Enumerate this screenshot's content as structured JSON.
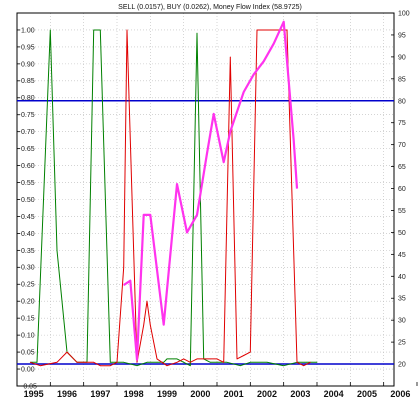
{
  "chart_data": {
    "type": "line",
    "title": "SELL (0.0157), BUY (0.0262), Money Flow Index (58.9725)",
    "x_ticks": [
      "1995",
      "1996",
      "1997",
      "1998",
      "1999",
      "2000",
      "2001",
      "2002",
      "2003",
      "2004",
      "2005",
      "2006",
      "200"
    ],
    "left_axis": {
      "ylim": [
        -0.05,
        1.05
      ],
      "ticks": [
        "1.00",
        "0.95",
        "0.90",
        "0.85",
        "0.80",
        "0.75",
        "0.70",
        "0.65",
        "0.60",
        "0.55",
        "0.50",
        "0.45",
        "0.40",
        "0.35",
        "0.30",
        "0.25",
        "0.20",
        "0.15",
        "0.10",
        "0.05",
        "0.00",
        "-0.05"
      ]
    },
    "right_axis": {
      "ylim": [
        15,
        100
      ],
      "ticks": [
        "100",
        "95",
        "90",
        "85",
        "80",
        "75",
        "70",
        "65",
        "60",
        "55",
        "50",
        "45",
        "40",
        "35",
        "30",
        "25",
        "20"
      ]
    },
    "reference_lines": [
      80,
      20
    ],
    "series": [
      {
        "color": "#008000",
        "axis": "left",
        "points": [
          [
            1995.4,
            0.02
          ],
          [
            1995.6,
            0.02
          ],
          [
            1996.0,
            1.0
          ],
          [
            1996.2,
            0.35
          ],
          [
            1996.5,
            0.05
          ],
          [
            1996.8,
            0.02
          ],
          [
            1997.1,
            0.02
          ],
          [
            1997.3,
            1.0
          ],
          [
            1997.5,
            1.0
          ],
          [
            1997.8,
            0.02
          ],
          [
            1998.2,
            0.02
          ],
          [
            1998.6,
            0.01
          ],
          [
            1998.9,
            0.02
          ],
          [
            1999.2,
            0.02
          ],
          [
            1999.4,
            0.02
          ],
          [
            1999.5,
            0.03
          ],
          [
            1999.7,
            0.03
          ],
          [
            1999.8,
            0.03
          ],
          [
            2000.0,
            0.02
          ],
          [
            2000.2,
            0.01
          ],
          [
            2000.4,
            0.99
          ],
          [
            2000.6,
            0.03
          ],
          [
            2000.8,
            0.02
          ],
          [
            2001.0,
            0.02
          ],
          [
            2001.3,
            0.02
          ],
          [
            2001.7,
            0.01
          ],
          [
            2002.0,
            0.02
          ],
          [
            2002.5,
            0.02
          ],
          [
            2003.0,
            0.01
          ],
          [
            2003.4,
            0.02
          ],
          [
            2003.7,
            0.02
          ],
          [
            2004.0,
            0.02
          ]
        ]
      },
      {
        "color": "#e00000",
        "axis": "left",
        "points": [
          [
            1995.4,
            0.02
          ],
          [
            1995.7,
            0.01
          ],
          [
            1996.2,
            0.02
          ],
          [
            1996.5,
            0.05
          ],
          [
            1996.8,
            0.02
          ],
          [
            1997.0,
            0.02
          ],
          [
            1997.3,
            0.02
          ],
          [
            1997.5,
            0.01
          ],
          [
            1997.8,
            0.01
          ],
          [
            1998.0,
            0.02
          ],
          [
            1998.2,
            0.3
          ],
          [
            1998.3,
            1.0
          ],
          [
            1998.6,
            0.02
          ],
          [
            1998.8,
            0.13
          ],
          [
            1998.9,
            0.2
          ],
          [
            1999.0,
            0.13
          ],
          [
            1999.2,
            0.03
          ],
          [
            1999.5,
            0.01
          ],
          [
            1999.8,
            0.02
          ],
          [
            2000.0,
            0.03
          ],
          [
            2000.2,
            0.02
          ],
          [
            2000.4,
            0.03
          ],
          [
            2000.6,
            0.03
          ],
          [
            2000.8,
            0.03
          ],
          [
            2001.0,
            0.03
          ],
          [
            2001.2,
            0.02
          ],
          [
            2001.4,
            0.92
          ],
          [
            2001.6,
            0.03
          ],
          [
            2001.8,
            0.04
          ],
          [
            2002.0,
            0.05
          ],
          [
            2002.2,
            1.0
          ],
          [
            2002.5,
            1.0
          ],
          [
            2002.9,
            1.0
          ],
          [
            2003.1,
            1.0
          ],
          [
            2003.4,
            0.02
          ],
          [
            2003.6,
            0.01
          ],
          [
            2003.8,
            0.02
          ]
        ]
      },
      {
        "color": "#ff33ee",
        "axis": "right",
        "points": [
          [
            1998.2,
            38
          ],
          [
            1998.4,
            39
          ],
          [
            1998.6,
            21
          ],
          [
            1998.8,
            54
          ],
          [
            1999.0,
            54
          ],
          [
            1999.4,
            29
          ],
          [
            1999.8,
            61
          ],
          [
            2000.1,
            50
          ],
          [
            2000.4,
            54
          ],
          [
            2000.7,
            68
          ],
          [
            2000.9,
            77
          ],
          [
            2001.2,
            66
          ],
          [
            2001.4,
            73
          ],
          [
            2001.8,
            82
          ],
          [
            2002.1,
            86
          ],
          [
            2002.4,
            89
          ],
          [
            2002.7,
            93
          ],
          [
            2003.0,
            98
          ],
          [
            2003.3,
            71
          ],
          [
            2003.4,
            60
          ]
        ]
      }
    ],
    "colors": {
      "reference_line": "#0000cc",
      "buy": "#008000",
      "sell": "#e00000",
      "mfi": "#ff33ee"
    }
  }
}
